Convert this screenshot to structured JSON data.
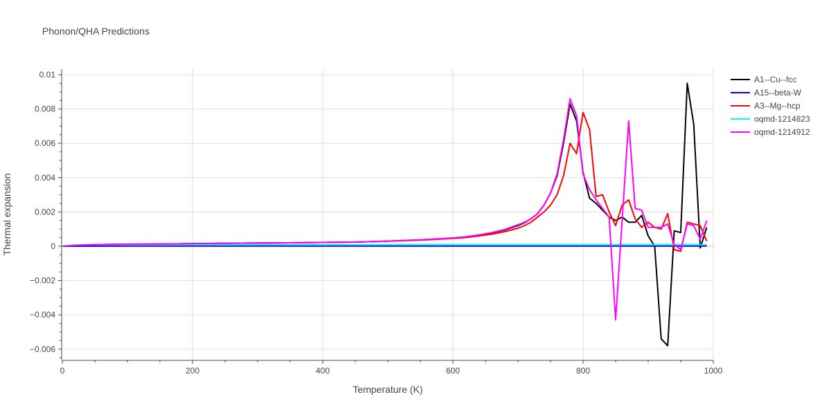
{
  "chart_data": {
    "type": "line",
    "title": "Phonon/QHA Predictions",
    "xlabel": "Temperature (K)",
    "ylabel": "Thermal expansion",
    "xlim": [
      0,
      1000
    ],
    "ylim": [
      -0.0066,
      0.0104
    ],
    "x_ticks": [
      0,
      200,
      400,
      600,
      800,
      1000
    ],
    "x_tick_labels": [
      "0",
      "200",
      "400",
      "600",
      "800",
      "1000"
    ],
    "y_ticks": [
      -0.006,
      -0.004,
      -0.002,
      0,
      0.002,
      0.004,
      0.006,
      0.008,
      0.01
    ],
    "y_tick_labels": [
      "−0.006",
      "−0.004",
      "−0.002",
      "0",
      "0.002",
      "0.004",
      "0.006",
      "0.008",
      "0.01"
    ],
    "grid": true,
    "legend_position": "top-right",
    "series": [
      {
        "name": "A1--Cu--fcc",
        "color": "#000000",
        "x": [
          0,
          20,
          40,
          60,
          80,
          100,
          150,
          200,
          250,
          300,
          350,
          400,
          450,
          500,
          550,
          600,
          620,
          640,
          660,
          680,
          700,
          710,
          720,
          730,
          740,
          750,
          760,
          770,
          780,
          790,
          800,
          810,
          820,
          830,
          840,
          850,
          860,
          870,
          880,
          890,
          900,
          910,
          920,
          930,
          940,
          950,
          960,
          970,
          980,
          990
        ],
        "y": [
          0,
          5e-05,
          8e-05,
          0.0001,
          0.00011,
          0.00012,
          0.00013,
          0.00015,
          0.00017,
          0.00019,
          0.0002,
          0.00022,
          0.00024,
          0.0003,
          0.00037,
          0.00048,
          0.00055,
          0.00065,
          0.00078,
          0.00095,
          0.0012,
          0.00137,
          0.0016,
          0.0019,
          0.0024,
          0.0031,
          0.0041,
          0.006,
          0.0083,
          0.0073,
          0.0043,
          0.0028,
          0.0025,
          0.0021,
          0.0017,
          0.0015,
          0.0017,
          0.0014,
          0.0014,
          0.0018,
          0.0006,
          0.0,
          -0.0054,
          -0.0058,
          0.0009,
          0.0008,
          0.0095,
          0.0071,
          -0.0001,
          0.0011
        ]
      },
      {
        "name": "A15--beta-W",
        "color": "#0000ff",
        "x": [
          0,
          100,
          200,
          300,
          400,
          500,
          600,
          700,
          800,
          900,
          990
        ],
        "y": [
          0,
          1e-05,
          1e-05,
          1e-05,
          1e-05,
          1e-05,
          1e-05,
          1e-05,
          1e-05,
          1e-05,
          1e-05
        ]
      },
      {
        "name": "A3--Mg--hcp",
        "color": "#ff0000",
        "x": [
          0,
          20,
          40,
          60,
          80,
          100,
          150,
          200,
          250,
          300,
          350,
          400,
          450,
          500,
          550,
          600,
          620,
          640,
          660,
          680,
          700,
          710,
          720,
          730,
          740,
          750,
          760,
          770,
          780,
          790,
          800,
          810,
          820,
          830,
          840,
          850,
          860,
          870,
          880,
          890,
          900,
          910,
          920,
          930,
          940,
          950,
          960,
          970,
          980,
          990
        ],
        "y": [
          0,
          5e-05,
          8e-05,
          0.0001,
          0.00011,
          0.00012,
          0.00013,
          0.00015,
          0.00017,
          0.00019,
          0.0002,
          0.00022,
          0.00024,
          0.00029,
          0.00035,
          0.00045,
          0.00051,
          0.0006,
          0.0007,
          0.00085,
          0.00105,
          0.0012,
          0.0014,
          0.0017,
          0.002,
          0.0024,
          0.003,
          0.0041,
          0.006,
          0.0054,
          0.0078,
          0.0068,
          0.0029,
          0.003,
          0.002,
          0.0012,
          0.0024,
          0.0027,
          0.0016,
          0.0011,
          0.0014,
          0.0011,
          0.001,
          0.0019,
          -0.0002,
          -0.0003,
          0.0014,
          0.0013,
          0.0012,
          0.0003
        ]
      },
      {
        "name": "oqmd-1214823",
        "color": "#00ffff",
        "x": [
          0,
          10,
          20,
          40,
          100,
          200,
          300,
          400,
          500,
          600,
          700,
          800,
          900,
          990
        ],
        "y": [
          0,
          5e-05,
          7e-05,
          9e-05,
          9e-05,
          9e-05,
          9e-05,
          9e-05,
          9e-05,
          9e-05,
          9e-05,
          9e-05,
          9e-05,
          9e-05
        ]
      },
      {
        "name": "oqmd-1214912",
        "color": "#ff00ff",
        "x": [
          0,
          20,
          40,
          60,
          80,
          100,
          150,
          200,
          250,
          300,
          350,
          400,
          450,
          500,
          550,
          600,
          620,
          640,
          660,
          680,
          700,
          710,
          720,
          730,
          740,
          750,
          760,
          770,
          780,
          790,
          800,
          810,
          820,
          830,
          840,
          850,
          860,
          870,
          880,
          890,
          900,
          910,
          920,
          930,
          940,
          950,
          960,
          970,
          980,
          990
        ],
        "y": [
          0,
          5e-05,
          8e-05,
          0.0001,
          0.00011,
          0.00012,
          0.00013,
          0.00015,
          0.00017,
          0.00019,
          0.0002,
          0.00022,
          0.00024,
          0.0003,
          0.00037,
          0.00048,
          0.00055,
          0.00066,
          0.0008,
          0.00098,
          0.00125,
          0.0014,
          0.0016,
          0.0019,
          0.0024,
          0.0031,
          0.0042,
          0.0062,
          0.0086,
          0.0076,
          0.0042,
          0.0033,
          0.0027,
          0.0022,
          0.0017,
          -0.0043,
          0.0015,
          0.0073,
          0.0022,
          0.0021,
          0.0011,
          0.0011,
          0.0011,
          0.0013,
          0.0001,
          -0.0002,
          0.0013,
          0.0012,
          0.0004,
          0.0015
        ]
      }
    ]
  }
}
